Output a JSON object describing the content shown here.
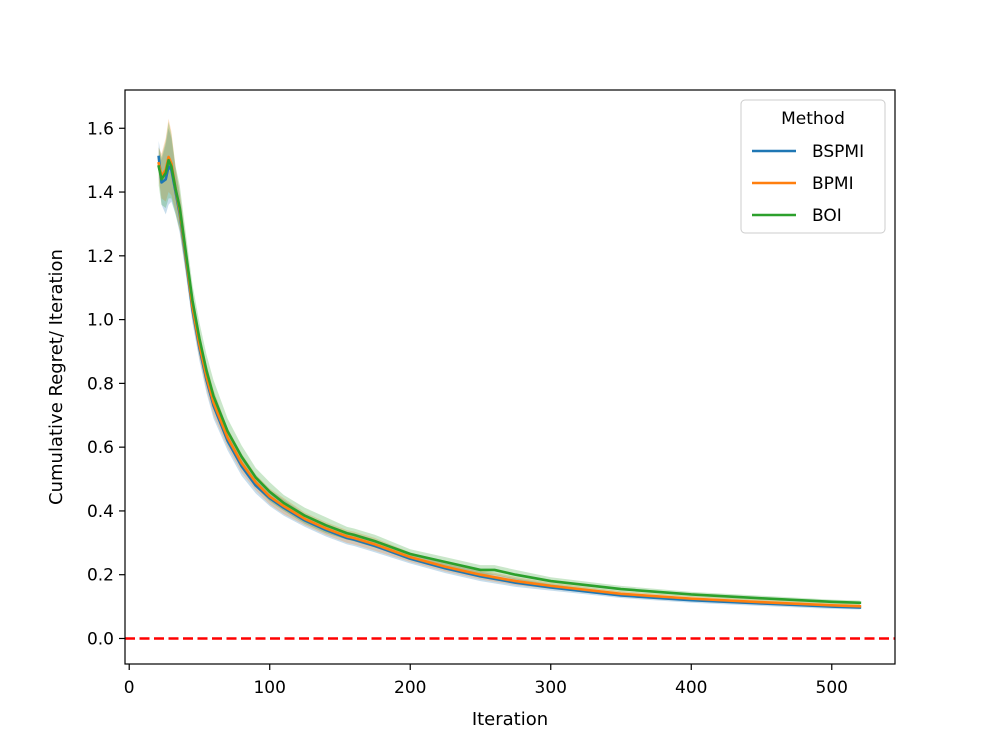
{
  "chart_data": {
    "type": "line",
    "title": "",
    "xlabel": "Iteration",
    "ylabel": "Cumulative Regret/ Iteration",
    "xlim": [
      -3,
      545
    ],
    "ylim": [
      -0.08,
      1.72
    ],
    "xticks": [
      0,
      100,
      200,
      300,
      400,
      500
    ],
    "xtick_labels": [
      "0",
      "100",
      "200",
      "300",
      "400",
      "500"
    ],
    "yticks": [
      0.0,
      0.2,
      0.4,
      0.6,
      0.8,
      1.0,
      1.2,
      1.4,
      1.6
    ],
    "ytick_labels": [
      "0.0",
      "0.2",
      "0.4",
      "0.6",
      "0.8",
      "1.0",
      "1.2",
      "1.4",
      "1.6"
    ],
    "grid": false,
    "legend": {
      "title": "Method",
      "position": "top-right"
    },
    "reference_line": {
      "y": 0.0,
      "color": "#ff0000",
      "style": "dashed"
    },
    "series": [
      {
        "name": "BSPMI",
        "color": "#1f77b4",
        "x": [
          21,
          23,
          26,
          28,
          30,
          33,
          36,
          40,
          45,
          50,
          55,
          60,
          70,
          80,
          90,
          100,
          110,
          125,
          140,
          155,
          160,
          175,
          200,
          225,
          250,
          275,
          300,
          350,
          400,
          450,
          500,
          520
        ],
        "y": [
          1.51,
          1.43,
          1.44,
          1.48,
          1.47,
          1.4,
          1.33,
          1.2,
          1.03,
          0.91,
          0.81,
          0.73,
          0.62,
          0.54,
          0.48,
          0.44,
          0.41,
          0.37,
          0.34,
          0.315,
          0.31,
          0.29,
          0.25,
          0.22,
          0.195,
          0.175,
          0.16,
          0.135,
          0.12,
          0.11,
          0.1,
          0.097
        ],
        "lower": [
          1.46,
          1.36,
          1.33,
          1.36,
          1.37,
          1.33,
          1.27,
          1.15,
          0.99,
          0.87,
          0.77,
          0.69,
          0.59,
          0.51,
          0.455,
          0.415,
          0.385,
          0.35,
          0.32,
          0.295,
          0.29,
          0.27,
          0.235,
          0.205,
          0.18,
          0.162,
          0.15,
          0.127,
          0.112,
          0.102,
          0.093,
          0.091
        ],
        "upper": [
          1.56,
          1.5,
          1.55,
          1.6,
          1.57,
          1.47,
          1.39,
          1.25,
          1.07,
          0.95,
          0.85,
          0.77,
          0.65,
          0.57,
          0.505,
          0.465,
          0.435,
          0.39,
          0.36,
          0.335,
          0.33,
          0.31,
          0.265,
          0.235,
          0.21,
          0.188,
          0.17,
          0.143,
          0.128,
          0.118,
          0.107,
          0.103
        ]
      },
      {
        "name": "BPMI",
        "color": "#ff7f0e",
        "x": [
          21,
          23,
          26,
          28,
          30,
          33,
          36,
          40,
          45,
          50,
          55,
          60,
          70,
          80,
          90,
          100,
          110,
          125,
          140,
          155,
          160,
          175,
          200,
          225,
          250,
          275,
          300,
          350,
          400,
          450,
          500,
          520
        ],
        "y": [
          1.49,
          1.45,
          1.47,
          1.51,
          1.49,
          1.41,
          1.34,
          1.21,
          1.04,
          0.92,
          0.82,
          0.74,
          0.63,
          0.55,
          0.49,
          0.445,
          0.415,
          0.375,
          0.345,
          0.32,
          0.315,
          0.295,
          0.255,
          0.225,
          0.2,
          0.18,
          0.165,
          0.14,
          0.125,
          0.114,
          0.104,
          0.101
        ],
        "lower": [
          1.44,
          1.38,
          1.37,
          1.4,
          1.39,
          1.34,
          1.28,
          1.16,
          1.0,
          0.88,
          0.78,
          0.7,
          0.6,
          0.52,
          0.465,
          0.42,
          0.39,
          0.355,
          0.325,
          0.3,
          0.295,
          0.275,
          0.24,
          0.21,
          0.185,
          0.167,
          0.155,
          0.132,
          0.117,
          0.106,
          0.097,
          0.094
        ],
        "upper": [
          1.54,
          1.52,
          1.57,
          1.63,
          1.59,
          1.48,
          1.4,
          1.26,
          1.08,
          0.96,
          0.86,
          0.78,
          0.66,
          0.58,
          0.515,
          0.47,
          0.44,
          0.395,
          0.365,
          0.34,
          0.335,
          0.315,
          0.27,
          0.24,
          0.215,
          0.193,
          0.175,
          0.148,
          0.133,
          0.122,
          0.111,
          0.108
        ]
      },
      {
        "name": "BOI",
        "color": "#2ca02c",
        "x": [
          21,
          23,
          26,
          28,
          30,
          33,
          36,
          40,
          45,
          50,
          55,
          60,
          70,
          80,
          90,
          100,
          110,
          125,
          140,
          155,
          160,
          175,
          200,
          225,
          250,
          260,
          275,
          300,
          350,
          400,
          450,
          500,
          520
        ],
        "y": [
          1.48,
          1.44,
          1.46,
          1.5,
          1.48,
          1.41,
          1.35,
          1.22,
          1.06,
          0.94,
          0.84,
          0.76,
          0.65,
          0.57,
          0.505,
          0.46,
          0.425,
          0.385,
          0.355,
          0.33,
          0.325,
          0.305,
          0.265,
          0.24,
          0.215,
          0.215,
          0.2,
          0.18,
          0.155,
          0.138,
          0.126,
          0.115,
          0.112
        ],
        "lower": [
          1.42,
          1.36,
          1.35,
          1.38,
          1.38,
          1.33,
          1.28,
          1.16,
          1.01,
          0.89,
          0.8,
          0.72,
          0.61,
          0.535,
          0.475,
          0.43,
          0.4,
          0.36,
          0.33,
          0.31,
          0.305,
          0.285,
          0.25,
          0.225,
          0.2,
          0.2,
          0.185,
          0.168,
          0.145,
          0.13,
          0.118,
          0.108,
          0.105
        ],
        "upper": [
          1.54,
          1.51,
          1.56,
          1.62,
          1.58,
          1.48,
          1.42,
          1.28,
          1.11,
          0.99,
          0.89,
          0.81,
          0.69,
          0.605,
          0.535,
          0.49,
          0.45,
          0.41,
          0.38,
          0.35,
          0.345,
          0.325,
          0.28,
          0.255,
          0.23,
          0.23,
          0.215,
          0.192,
          0.165,
          0.146,
          0.134,
          0.122,
          0.119
        ]
      }
    ]
  }
}
